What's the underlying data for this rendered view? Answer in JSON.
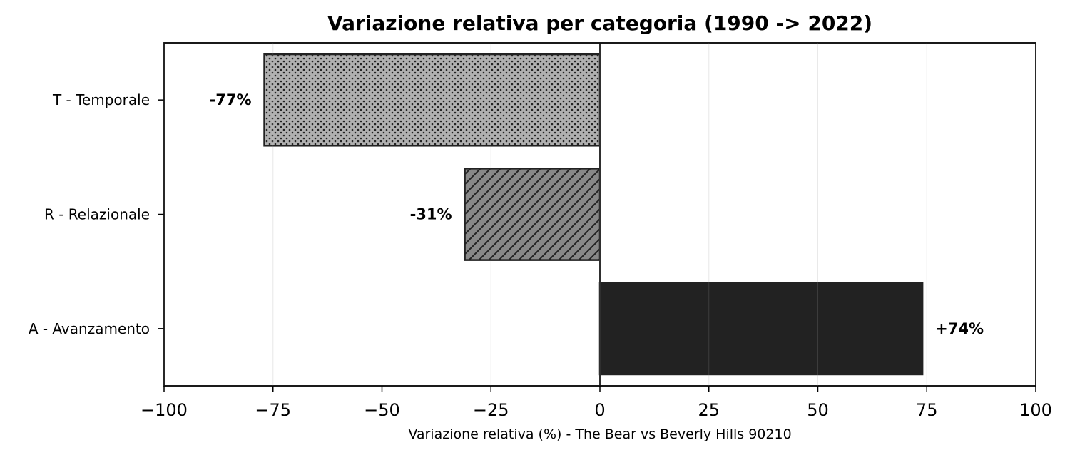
{
  "chart_data": {
    "type": "bar",
    "orientation": "horizontal",
    "title": "Variazione relativa per categoria (1990 -> 2022)",
    "xlabel": "Variazione relativa (%) - The Bear vs Beverly Hills 90210",
    "ylabel": "",
    "xlim": [
      -100,
      100
    ],
    "xticks": [
      -100,
      -75,
      -50,
      -25,
      0,
      25,
      50,
      75,
      100
    ],
    "xtick_labels": [
      "−100",
      "−75",
      "−50",
      "−25",
      "0",
      "25",
      "50",
      "75",
      "100"
    ],
    "grid": "x",
    "bars": [
      {
        "category": "T - Temporale",
        "value": -77,
        "label": "-77%",
        "fill": "#b0b0b0",
        "pattern": "dots"
      },
      {
        "category": "R - Relazionale",
        "value": -31,
        "label": "-31%",
        "fill": "#888888",
        "pattern": "diagonal-hatch"
      },
      {
        "category": "A - Avanzamento",
        "value": 74,
        "label": "+74%",
        "fill": "#222222",
        "pattern": "solid"
      }
    ]
  }
}
